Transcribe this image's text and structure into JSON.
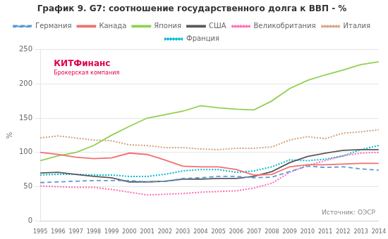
{
  "chart_data": {
    "type": "line",
    "title": "График 9. G7: соотношение государственного долга к ВВП - %",
    "y_label": "%",
    "categories": [
      1995,
      1996,
      1997,
      1998,
      1999,
      2000,
      2001,
      2002,
      2003,
      2004,
      2005,
      2006,
      2007,
      2008,
      2009,
      2010,
      2011,
      2012,
      2013,
      2014
    ],
    "series": [
      {
        "name": "Германия",
        "color": "#5b9bd5",
        "line_style": "dashed",
        "values": [
          56,
          57,
          58,
          59,
          59,
          59,
          57,
          58,
          62,
          63,
          65,
          65,
          63,
          64,
          72,
          80,
          78,
          79,
          76,
          74
        ]
      },
      {
        "name": "Канада",
        "color": "#f07070",
        "line_style": "solid",
        "values": [
          100,
          97,
          93,
          91,
          92,
          99,
          97,
          89,
          80,
          79,
          79,
          75,
          67,
          68,
          79,
          82,
          82,
          83,
          84,
          84
        ]
      },
      {
        "name": "Япония",
        "color": "#92d050",
        "line_style": "solid",
        "values": [
          88,
          95,
          100,
          110,
          125,
          138,
          150,
          155,
          160,
          168,
          165,
          163,
          162,
          175,
          193,
          205,
          213,
          220,
          228,
          232
        ]
      },
      {
        "name": "США",
        "color": "#595959",
        "line_style": "solid",
        "values": [
          70,
          71,
          68,
          65,
          63,
          57,
          57,
          58,
          61,
          61,
          62,
          62,
          65,
          72,
          85,
          94,
          99,
          103,
          104,
          104
        ]
      },
      {
        "name": "Великобритания",
        "color": "#ff69b4",
        "line_style": "dotted",
        "values": [
          51,
          50,
          49,
          49,
          46,
          42,
          38,
          39,
          40,
          42,
          43,
          44,
          48,
          55,
          71,
          81,
          88,
          95,
          99,
          100
        ]
      },
      {
        "name": "Италия",
        "color": "#d3a07a",
        "line_style": "dotted",
        "values": [
          121,
          124,
          121,
          118,
          117,
          111,
          110,
          107,
          107,
          105,
          104,
          106,
          106,
          108,
          118,
          123,
          120,
          128,
          130,
          133
        ]
      },
      {
        "name": "Франция",
        "color": "#00bcd4",
        "line_style": "dotted",
        "values": [
          67,
          68,
          68,
          67,
          67,
          65,
          65,
          68,
          73,
          75,
          75,
          71,
          73,
          79,
          89,
          88,
          90,
          95,
          104,
          110
        ]
      }
    ],
    "ylim": [
      0,
      250
    ],
    "yticks": [
      0,
      50,
      100,
      150,
      200,
      250
    ],
    "grid": "y",
    "legend": "top",
    "annotations": [
      {
        "text": "КИТФинанс",
        "color": "#e0004d"
      },
      {
        "text": "Брокерская компания",
        "color": "#e0004d"
      },
      {
        "text": "Источник: ОЭСР",
        "color": "#888888"
      }
    ]
  }
}
